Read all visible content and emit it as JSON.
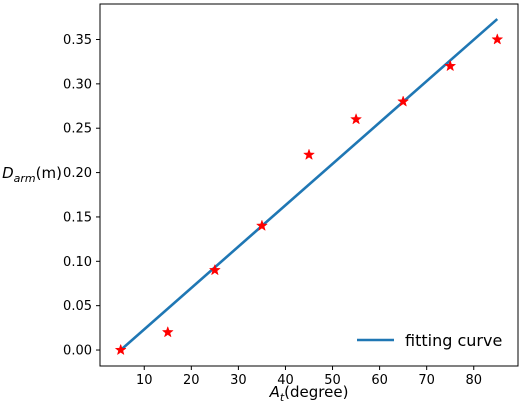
{
  "chart_data": {
    "type": "scatter",
    "title": "",
    "xlabel": {
      "main": "A",
      "sub": "t",
      "rest": "(degree)"
    },
    "ylabel": {
      "main": "D",
      "sub": "arm",
      "rest": "(m)"
    },
    "xlim": [
      0.6,
      89.4
    ],
    "ylim": [
      -0.018,
      0.39
    ],
    "xticks": [
      10,
      20,
      30,
      40,
      50,
      60,
      70,
      80
    ],
    "yticks": [
      0.0,
      0.05,
      0.1,
      0.15,
      0.2,
      0.25,
      0.3,
      0.35
    ],
    "ytick_decimals": 2,
    "grid": false,
    "legend": {
      "position": "lower-right"
    },
    "series": [
      {
        "name": "fitting curve",
        "kind": "line",
        "color": "#1f77b4",
        "x": [
          5,
          85
        ],
        "y": [
          0.0,
          0.373
        ]
      },
      {
        "kind": "scatter",
        "marker": "star",
        "color": "#ff0000",
        "x": [
          5,
          15,
          25,
          35,
          45,
          55,
          65,
          75,
          85
        ],
        "y": [
          0.0,
          0.02,
          0.09,
          0.14,
          0.22,
          0.26,
          0.28,
          0.32,
          0.35
        ]
      }
    ]
  }
}
